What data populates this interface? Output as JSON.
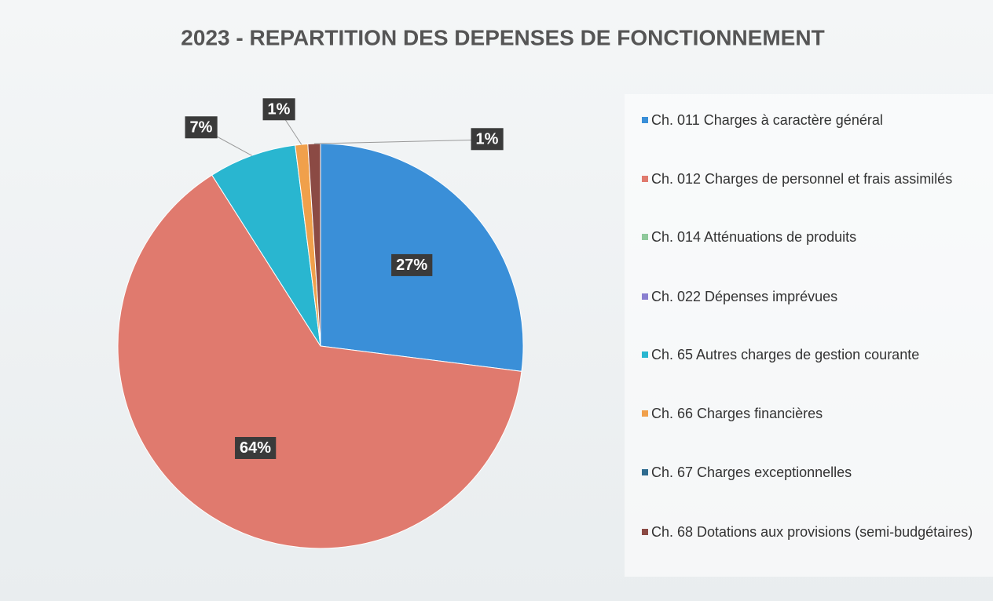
{
  "chart_data": {
    "type": "pie",
    "title": "2023 - REPARTITION DES DEPENSES DE FONCTIONNEMENT",
    "categories": [
      "Ch. 011 Charges à caractère général",
      "Ch. 012 Charges de personnel et frais assimilés",
      "Ch. 014 Atténuations de produits",
      "Ch. 022 Dépenses imprévues",
      "Ch. 65 Autres charges de gestion courante",
      "Ch. 66 Charges financières",
      "Ch. 67 Charges exceptionnelles",
      "Ch. 68 Dotations aux provisions (semi-budgétaires)"
    ],
    "values": [
      27,
      64,
      0,
      0,
      7,
      1,
      0,
      1
    ],
    "value_labels": [
      "27%",
      "64%",
      null,
      null,
      "7%",
      "1%",
      null,
      "1%"
    ],
    "colors": [
      "#3a8fd8",
      "#e07a6e",
      "#8fc99b",
      "#8a7fd0",
      "#29b6d0",
      "#f0a04b",
      "#2e6b8f",
      "#8b4a44"
    ],
    "legend": "right"
  }
}
